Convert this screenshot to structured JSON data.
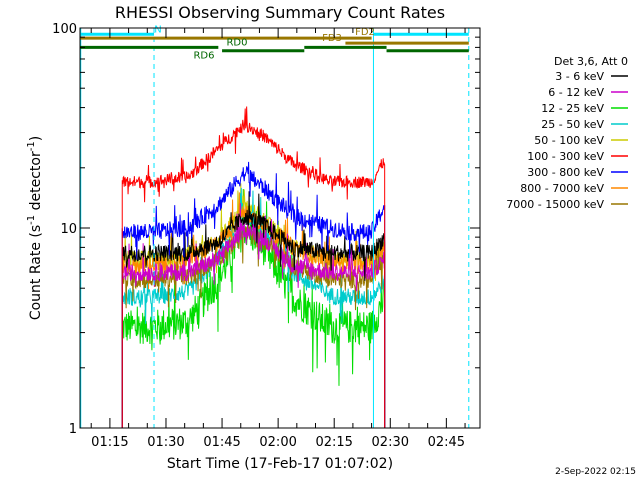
{
  "chart_data": {
    "type": "line",
    "title": "RHESSI Observing Summary Count Rates",
    "xlabel": "Start Time (17-Feb-17 01:07:02)",
    "ylabel": "Count Rate (s",
    "ylabel_sup": "-1",
    "ylabel_tail": " detector",
    "ylabel_tail_sup": "-1",
    "ylabel_close": ")",
    "yscale": "log",
    "ylim": [
      1,
      100
    ],
    "xlim_minutes": [
      67.0,
      174.0
    ],
    "x_ticks": [
      {
        "label": "01:15",
        "minutes": 75
      },
      {
        "label": "01:30",
        "minutes": 90
      },
      {
        "label": "01:45",
        "minutes": 105
      },
      {
        "label": "02:00",
        "minutes": 120
      },
      {
        "label": "02:15",
        "minutes": 135
      },
      {
        "label": "02:30",
        "minutes": 150
      },
      {
        "label": "02:45",
        "minutes": 165
      }
    ],
    "y_tick_labels": [
      {
        "label": "1",
        "value": 1
      },
      {
        "label": "10",
        "value": 10
      },
      {
        "label": "100",
        "value": 100
      }
    ],
    "legend_title": "Det 3,6, Att 0",
    "series": [
      {
        "name": "3 - 6 keV",
        "color": "#000000",
        "x": [
          78.3,
          86,
          96,
          104,
          111,
          116,
          124,
          134,
          140,
          145,
          148.5
        ],
        "values": [
          7.5,
          7.5,
          7.5,
          8.5,
          11.5,
          10.5,
          8,
          7.5,
          7.5,
          7.5,
          9
        ]
      },
      {
        "name": "6 - 12 keV",
        "color": "#cc00cc",
        "x": [
          78.3,
          86,
          96,
          104,
          111,
          116,
          124,
          134,
          140,
          145,
          148.5
        ],
        "values": [
          6,
          6,
          6,
          7,
          10,
          9,
          6.5,
          6,
          6,
          6,
          7
        ]
      },
      {
        "name": "12 - 25 keV",
        "color": "#00dd00",
        "x": [
          78.3,
          86,
          96,
          104,
          111,
          116,
          124,
          134,
          140,
          145,
          148.5
        ],
        "values": [
          3.2,
          3.2,
          3.4,
          5.5,
          10,
          8,
          4.5,
          3.2,
          3.2,
          3.2,
          4.5
        ]
      },
      {
        "name": "25 - 50 keV",
        "color": "#00cccc",
        "x": [
          78.3,
          86,
          96,
          104,
          111,
          116,
          124,
          134,
          140,
          145,
          148.5
        ],
        "values": [
          4.5,
          4.5,
          4.8,
          7,
          12,
          10,
          6,
          4.6,
          4.5,
          4.5,
          5.5
        ]
      },
      {
        "name": "50 - 100 keV",
        "color": "#cccc00",
        "x": [
          78.3,
          86,
          96,
          104,
          111,
          116,
          124,
          134,
          140,
          145,
          148.5
        ],
        "values": [
          7,
          7,
          7.2,
          8.5,
          13,
          11,
          8,
          7,
          7,
          7,
          8.5
        ]
      },
      {
        "name": "100 - 300 keV",
        "color": "#ff0000",
        "x": [
          78.3,
          86,
          96,
          104,
          111,
          116,
          124,
          134,
          140,
          145,
          148.5
        ],
        "values": [
          17,
          17,
          18,
          25,
          33,
          29,
          21,
          17,
          17,
          17,
          22
        ]
      },
      {
        "name": "300 - 800 keV",
        "color": "#0000ff",
        "x": [
          78.3,
          86,
          96,
          104,
          111,
          116,
          124,
          134,
          140,
          145,
          148.5
        ],
        "values": [
          9.5,
          9.5,
          10,
          13,
          19,
          16,
          11.5,
          10,
          9.5,
          9.5,
          13
        ]
      },
      {
        "name": "800 - 7000 keV",
        "color": "#ff8800",
        "x": [
          78.3,
          86,
          96,
          104,
          111,
          116,
          124,
          134,
          140,
          145,
          148.5
        ],
        "values": [
          6.5,
          6.5,
          6.8,
          8.5,
          12,
          10.5,
          8,
          6.8,
          6.5,
          6.5,
          8.5
        ]
      },
      {
        "name": "7000 - 15000 keV",
        "color": "#997700",
        "x": [
          78.3,
          86,
          96,
          104,
          111,
          116,
          124,
          134,
          140,
          145,
          148.5
        ],
        "values": [
          5.5,
          5.5,
          5.7,
          7,
          9.5,
          8.5,
          6.5,
          5.5,
          5.5,
          5.5,
          7
        ]
      }
    ],
    "vertical_lines": [
      {
        "minutes": 67.2,
        "color": "#00e5ff",
        "style": "solid"
      },
      {
        "minutes": 86.8,
        "color": "#00e5ff",
        "style": "dashed"
      },
      {
        "minutes": 145.5,
        "color": "#00e5ff",
        "style": "solid"
      },
      {
        "minutes": 171.0,
        "color": "#00e5ff",
        "style": "dashed"
      }
    ],
    "flag_bars": [
      {
        "label": "N",
        "color": "#00e5ff",
        "value": 93,
        "segments": [
          [
            67,
            86.8
          ],
          [
            145.5,
            171.0
          ]
        ]
      },
      {
        "label": "FD2",
        "color": "#997700",
        "value": 89,
        "segments": [
          [
            67,
            145
          ]
        ]
      },
      {
        "label": "FD3",
        "color": "#997700",
        "value": 84,
        "segments": [
          [
            138,
            171.0
          ]
        ]
      },
      {
        "label": "RD0",
        "color": "#006600",
        "value": 80,
        "segments": [
          [
            67,
            104
          ],
          [
            127,
            149
          ]
        ]
      },
      {
        "label": "RD6",
        "color": "#006600",
        "value": 77,
        "segments": [
          [
            105,
            127
          ],
          [
            149,
            171.0
          ]
        ]
      }
    ]
  },
  "footer": {
    "date_stamp": "2-Sep-2022 02:15"
  }
}
